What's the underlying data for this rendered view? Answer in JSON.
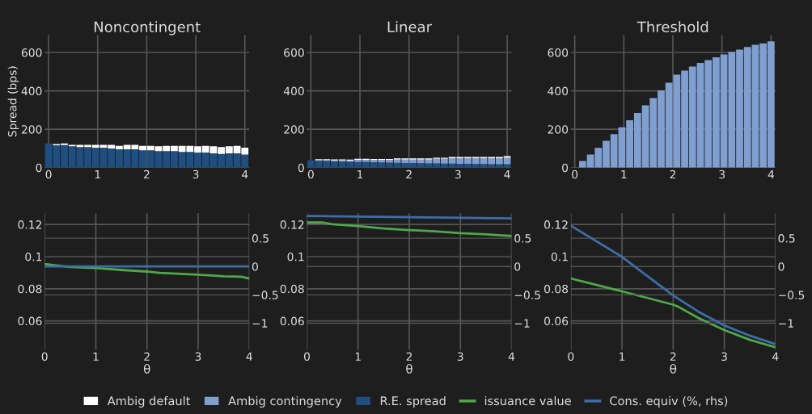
{
  "chart_data": [
    {
      "type": "bar",
      "title": "Noncontingent",
      "ylabel": "Spread (bps)",
      "stacked": true,
      "grid": true,
      "legend": "bottom",
      "x": [
        0,
        0.16,
        0.32,
        0.48,
        0.64,
        0.8,
        0.96,
        1.12,
        1.28,
        1.44,
        1.6,
        1.76,
        1.92,
        2.08,
        2.24,
        2.4,
        2.56,
        2.72,
        2.88,
        3.04,
        3.2,
        3.36,
        3.52,
        3.68,
        3.84,
        4
      ],
      "xlim": [
        -0.08,
        4.09
      ],
      "xticks": [
        0,
        1,
        2,
        3,
        4
      ],
      "ylim": [
        0,
        690
      ],
      "yticks": [
        0,
        200,
        400,
        600
      ],
      "series": [
        {
          "name": "R.E. spread",
          "color": "#1f4e80",
          "values": [
            126,
            117,
            118,
            111,
            107,
            107,
            104,
            104,
            100,
            96,
            96,
            96,
            90,
            90,
            86,
            86,
            86,
            82,
            82,
            79,
            79,
            75,
            71,
            75,
            75,
            68
          ]
        },
        {
          "name": "Ambig default",
          "color": "#ffffff",
          "values": [
            0,
            6,
            8,
            8,
            12,
            12,
            15,
            15,
            19,
            18,
            23,
            23,
            24,
            24,
            25,
            28,
            28,
            32,
            32,
            32,
            35,
            36,
            36,
            36,
            39,
            36
          ]
        }
      ]
    },
    {
      "type": "bar",
      "title": "Linear",
      "stacked": true,
      "grid": true,
      "legend": "bottom",
      "x": [
        0,
        0.16,
        0.32,
        0.48,
        0.64,
        0.8,
        0.96,
        1.12,
        1.28,
        1.44,
        1.6,
        1.76,
        1.92,
        2.08,
        2.24,
        2.4,
        2.56,
        2.72,
        2.88,
        3.04,
        3.2,
        3.36,
        3.52,
        3.68,
        3.84,
        4
      ],
      "xlim": [
        -0.08,
        4.09
      ],
      "xticks": [
        0,
        1,
        2,
        3,
        4
      ],
      "ylim": [
        0,
        690
      ],
      "yticks": [
        0,
        200,
        400,
        600
      ],
      "series": [
        {
          "name": "R.E. spread",
          "color": "#1f4e80",
          "values": [
            39,
            36,
            35,
            33,
            32,
            31,
            30,
            29,
            28,
            27,
            26,
            25,
            24,
            24,
            23,
            22,
            22,
            21,
            21,
            20,
            20,
            19,
            19,
            18,
            18,
            18
          ]
        },
        {
          "name": "Ambig contingency",
          "color": "#7f9fd0",
          "values": [
            0,
            3,
            4,
            5,
            6,
            6,
            11,
            12,
            12,
            13,
            14,
            17,
            18,
            18,
            19,
            20,
            24,
            25,
            28,
            29,
            29,
            30,
            30,
            31,
            31,
            34
          ]
        },
        {
          "name": "Ambig default",
          "color": "#ffffff",
          "values": [
            0,
            5,
            5,
            5,
            5,
            5,
            5,
            5,
            5,
            5,
            5,
            6,
            6,
            6,
            6,
            6,
            6,
            6,
            7,
            7,
            7,
            7,
            7,
            7,
            7,
            8
          ]
        }
      ]
    },
    {
      "type": "bar",
      "title": "Threshold",
      "stacked": true,
      "grid": true,
      "legend": "bottom",
      "x": [
        0,
        0.16,
        0.32,
        0.48,
        0.64,
        0.8,
        0.96,
        1.12,
        1.28,
        1.44,
        1.6,
        1.76,
        1.92,
        2.08,
        2.24,
        2.4,
        2.56,
        2.72,
        2.88,
        3.04,
        3.2,
        3.36,
        3.52,
        3.68,
        3.84,
        4
      ],
      "xlim": [
        -0.08,
        4.09
      ],
      "xticks": [
        0,
        1,
        2,
        3,
        4
      ],
      "ylim": [
        0,
        690
      ],
      "yticks": [
        0,
        200,
        400,
        600
      ],
      "series": [
        {
          "name": "Ambig contingency",
          "color": "#7f9fd0",
          "values": [
            0,
            35,
            68,
            103,
            140,
            175,
            210,
            247,
            285,
            325,
            363,
            402,
            442,
            485,
            505,
            527,
            545,
            560,
            575,
            590,
            603,
            615,
            628,
            640,
            647,
            658
          ]
        }
      ]
    },
    {
      "type": "line",
      "xlabel": "θ",
      "grid": true,
      "legend": "bottom",
      "xlim": [
        0,
        4
      ],
      "xticks": [
        0,
        1,
        2,
        3,
        4
      ],
      "ylim": [
        0.042,
        0.127
      ],
      "yticks": [
        0.06,
        0.08,
        0.1,
        0.12
      ],
      "y2lim": [
        -1.47,
        0.94
      ],
      "y2ticks": [
        -1,
        -0.5,
        0,
        0.5
      ],
      "series": [
        {
          "name": "issuance value",
          "color": "#4fa84a",
          "x": [
            0,
            0.5,
            1,
            1.5,
            2,
            2.25,
            3,
            3.5,
            3.84,
            4
          ],
          "values": [
            0.0954,
            0.0935,
            0.0929,
            0.0917,
            0.0907,
            0.0899,
            0.0888,
            0.0877,
            0.0875,
            0.0864
          ]
        },
        {
          "name": "Cons. equiv (%, rhs)",
          "color": "#3d6ea8",
          "axis": "y2",
          "x": [
            0,
            4
          ],
          "values": [
            0,
            0
          ]
        }
      ]
    },
    {
      "type": "line",
      "xlabel": "θ",
      "grid": true,
      "legend": "bottom",
      "xlim": [
        0,
        4
      ],
      "xticks": [
        0,
        1,
        2,
        3,
        4
      ],
      "ylim": [
        0.042,
        0.127
      ],
      "yticks": [
        0.06,
        0.08,
        0.1,
        0.12
      ],
      "y2lim": [
        -1.47,
        0.94
      ],
      "y2ticks": [
        -1,
        -0.5,
        0,
        0.5
      ],
      "series": [
        {
          "name": "issuance value",
          "color": "#4fa84a",
          "x": [
            0,
            0.32,
            0.5,
            1,
            1.5,
            2,
            2.5,
            3,
            3.5,
            4
          ],
          "values": [
            0.1212,
            0.1212,
            0.1201,
            0.119,
            0.1175,
            0.1165,
            0.1157,
            0.1146,
            0.1139,
            0.1128
          ]
        },
        {
          "name": "Cons. equiv (%, rhs)",
          "color": "#3d6ea8",
          "axis": "y2",
          "x": [
            0,
            4
          ],
          "values": [
            0.89,
            0.85
          ]
        }
      ]
    },
    {
      "type": "line",
      "xlabel": "θ",
      "grid": true,
      "legend": "bottom",
      "xlim": [
        0,
        4
      ],
      "xticks": [
        0,
        1,
        2,
        3,
        4
      ],
      "ylim": [
        0.042,
        0.127
      ],
      "yticks": [
        0.06,
        0.08,
        0.1,
        0.12
      ],
      "y2lim": [
        -1.47,
        0.94
      ],
      "y2ticks": [
        -1,
        -0.5,
        0,
        0.5
      ],
      "series": [
        {
          "name": "issuance value",
          "color": "#4fa84a",
          "x": [
            0,
            1,
            2,
            2.1,
            2.5,
            3,
            3.5,
            4
          ],
          "values": [
            0.0864,
            0.0784,
            0.0701,
            0.0688,
            0.0617,
            0.0543,
            0.0482,
            0.0436
          ]
        },
        {
          "name": "Cons. equiv (%, rhs)",
          "color": "#3d6ea8",
          "axis": "y2",
          "x": [
            0,
            1,
            2,
            2.5,
            3,
            3.5,
            4
          ],
          "values": [
            0.72,
            0.17,
            -0.51,
            -0.8,
            -1.04,
            -1.22,
            -1.37
          ]
        }
      ]
    }
  ]
}
